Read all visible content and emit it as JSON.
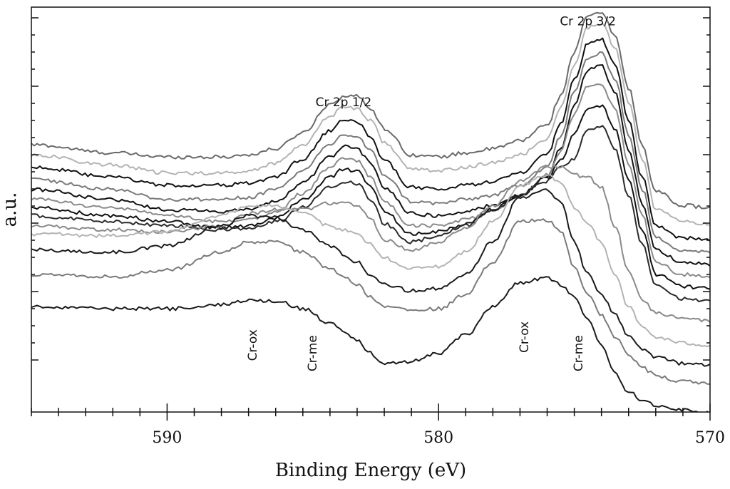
{
  "chart_data": {
    "type": "line",
    "title": "",
    "xlabel": "Binding Energy (eV)",
    "ylabel": "a.u.",
    "xlim": [
      595,
      570
    ],
    "ylim": [
      0,
      100
    ],
    "x_reversed": true,
    "y_ticklabels_shown": false,
    "grid": false,
    "legend": "none",
    "x_ticks": [
      {
        "value": 590,
        "label": "590"
      },
      {
        "value": 580,
        "label": "580"
      },
      {
        "value": 570,
        "label": "570"
      }
    ],
    "annotations": [
      {
        "text": "Cr 2p 3/2",
        "x": 574.5,
        "y": 95.5,
        "rotation": 0
      },
      {
        "text": "Cr 2p 1/2",
        "x": 583.5,
        "y": 75.5,
        "rotation": 0
      },
      {
        "text": "Cr-ox",
        "x": 586.7,
        "y": 16.5,
        "rotation": -90
      },
      {
        "text": "Cr-me",
        "x": 584.5,
        "y": 14.5,
        "rotation": -90
      },
      {
        "text": "Cr-ox",
        "x": 576.7,
        "y": 18.5,
        "rotation": -90
      },
      {
        "text": "Cr-me",
        "x": 574.7,
        "y": 14.5,
        "rotation": -90
      }
    ],
    "x": [
      595,
      592,
      590,
      588,
      587,
      586,
      585,
      584,
      583.5,
      583,
      582.5,
      582,
      581,
      580,
      579,
      578,
      577,
      576,
      575.5,
      575,
      574.5,
      574,
      573.5,
      573,
      572.5,
      572,
      571,
      570
    ],
    "series": [
      {
        "values": [
          66,
          64,
          63,
          63,
          63.5,
          65,
          69,
          76,
          78,
          78,
          75,
          70,
          63.5,
          63,
          64,
          65,
          67,
          71,
          78,
          89,
          98,
          98.5,
          93,
          80,
          66,
          54.5,
          51,
          50.5
        ],
        "color": "#6a6a6a"
      },
      {
        "values": [
          63.5,
          61,
          59,
          59,
          59.5,
          61.5,
          66,
          73,
          75.5,
          75,
          72,
          66.5,
          60,
          59.5,
          60.5,
          61.5,
          63.5,
          67.5,
          75,
          86,
          95,
          96,
          90,
          76.5,
          62.5,
          50,
          47,
          46.5
        ],
        "color": "#b3b3b3"
      },
      {
        "values": [
          60.5,
          58,
          56,
          56,
          56.5,
          58,
          62.5,
          69.5,
          72,
          71.5,
          68,
          62,
          55.5,
          55,
          56,
          57,
          59,
          63.5,
          71,
          82,
          91,
          92,
          86,
          72,
          58,
          46,
          43,
          42.5
        ],
        "color": "#111111"
      },
      {
        "values": [
          57.5,
          55,
          52.5,
          52.5,
          53,
          55,
          59.5,
          66,
          68.5,
          68,
          64.5,
          58.5,
          52,
          51.5,
          52.5,
          53.5,
          56,
          60.5,
          68,
          79,
          87.5,
          88.5,
          82.5,
          68.5,
          55,
          43,
          40,
          39.5
        ],
        "color": "#7a7a7a"
      },
      {
        "values": [
          55,
          52.5,
          50,
          49.5,
          50,
          52,
          56.5,
          63,
          65.5,
          65,
          61.5,
          55.5,
          49,
          48.5,
          49.5,
          51,
          53.5,
          58,
          65,
          76,
          84.5,
          85.5,
          79,
          65,
          51.5,
          40,
          37,
          36.5
        ],
        "color": "#111111"
      },
      {
        "values": [
          52.5,
          50.5,
          48.5,
          47,
          47.5,
          49.5,
          54,
          60.5,
          62.5,
          62,
          58,
          52,
          46,
          46,
          47.5,
          50,
          53.5,
          58.5,
          64.5,
          73.5,
          80.5,
          81,
          75,
          61.5,
          48.5,
          37,
          34,
          33.5
        ],
        "color": "#8a8a8a"
      },
      {
        "values": [
          50.5,
          48.5,
          47,
          45.5,
          46,
          48,
          52.5,
          58,
          60,
          59.5,
          55.5,
          49.5,
          44,
          44.5,
          46.5,
          50,
          53.5,
          58,
          62,
          68.5,
          75,
          75.5,
          70,
          57.5,
          45,
          34,
          31,
          30.5
        ],
        "color": "#111111"
      },
      {
        "values": [
          48.5,
          47,
          46,
          45,
          45.5,
          47,
          50.5,
          55.5,
          57,
          56.5,
          52.5,
          46.5,
          42,
          43.5,
          46,
          50,
          53.5,
          57,
          60.5,
          62.5,
          70,
          70.5,
          65,
          53.5,
          41.5,
          31,
          28,
          27.5
        ],
        "color": "#2a2a2a"
      },
      {
        "values": [
          46,
          45,
          44.5,
          46,
          49,
          50,
          50,
          51.5,
          52,
          51,
          47.5,
          42.5,
          40,
          42,
          45.5,
          51,
          57,
          60.5,
          60.5,
          58.5,
          58,
          55.5,
          46,
          35,
          28,
          24.5,
          23,
          22.5
        ],
        "color": "#8a8a8a"
      },
      {
        "values": [
          44,
          43.5,
          44.5,
          48.5,
          51,
          51,
          49,
          46,
          45,
          44,
          41.5,
          38,
          35.5,
          36,
          39.5,
          47,
          56,
          58.5,
          56.5,
          50.5,
          46.5,
          42,
          34,
          26,
          21,
          18.5,
          17,
          16.5
        ],
        "color": "#b3b3b3"
      },
      {
        "values": [
          40,
          39.5,
          41,
          46,
          48.5,
          48,
          45,
          41,
          39,
          37,
          34,
          31.5,
          30,
          30.5,
          34,
          42,
          53,
          55,
          52,
          42,
          34,
          29,
          24,
          19,
          15.5,
          13.5,
          12,
          11.5
        ],
        "color": "#1a1a1a"
      },
      {
        "values": [
          34,
          33.5,
          35,
          39.5,
          42,
          42,
          39.5,
          35.5,
          33.5,
          31.5,
          28.5,
          26,
          25,
          25.5,
          29,
          37,
          47,
          47.5,
          44.5,
          36,
          29,
          24,
          18.5,
          14,
          11,
          9,
          7.5,
          7
        ],
        "color": "#7a7a7a"
      },
      {
        "values": [
          26,
          25.5,
          25.5,
          26.5,
          27.5,
          27.5,
          25.5,
          22,
          20,
          17.5,
          14.5,
          12,
          12.5,
          14.5,
          19,
          26,
          32,
          33,
          31.5,
          28.5,
          23,
          16.5,
          9.5,
          5,
          3,
          1.5,
          0.5,
          0
        ],
        "color": "#1a1a1a"
      }
    ]
  }
}
